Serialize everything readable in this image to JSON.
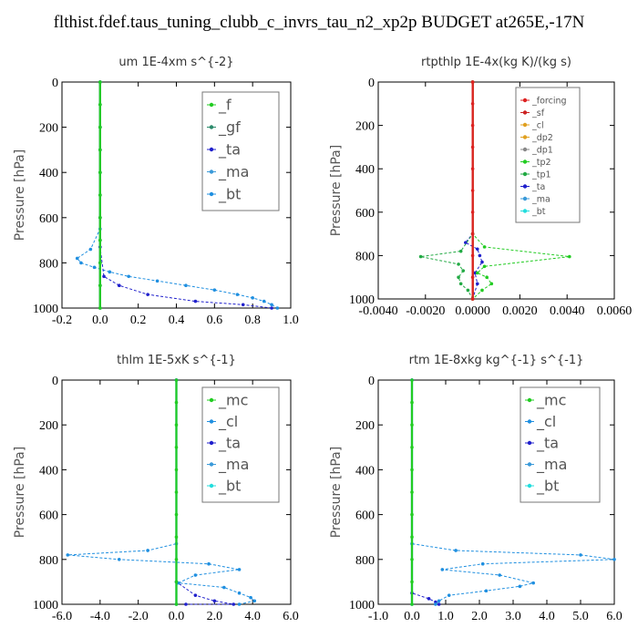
{
  "title": "flthist.fdef.taus_tuning_clubb_c_invrs_tau_n2_xp2p  BUDGET at265E,-17N",
  "chart_data": [
    {
      "type": "line",
      "title": "um   1E-4xm s^{-2}",
      "ylabel": "Pressure [hPa]",
      "xlim": [
        -0.2,
        1.0
      ],
      "ylim": [
        1000,
        0
      ],
      "xticks": [
        "-0.2",
        "0.0",
        "0.2",
        "0.4",
        "0.6",
        "0.8",
        "1.0"
      ],
      "yticks": [
        "0",
        "200",
        "400",
        "600",
        "800",
        "1000"
      ],
      "legend": [
        "_f",
        "_gf",
        "_ta",
        "_ma",
        "_bt"
      ],
      "series": [
        {
          "name": "_f",
          "color": "#22cc22",
          "x": [
            0,
            0,
            0,
            0,
            0,
            0,
            0,
            0,
            0,
            0,
            0
          ],
          "y": [
            0,
            100,
            200,
            300,
            400,
            500,
            600,
            700,
            800,
            900,
            1000
          ]
        },
        {
          "name": "_gf",
          "color": "#2a8a6a",
          "x": [
            0,
            0,
            0,
            0,
            0,
            0,
            0,
            0,
            0,
            0,
            0
          ],
          "y": [
            0,
            100,
            200,
            300,
            400,
            500,
            600,
            700,
            800,
            900,
            1000
          ]
        },
        {
          "name": "_ta",
          "color": "#2020cc",
          "x": [
            0,
            0,
            0,
            0,
            0.02,
            0.1,
            0.25,
            0.5,
            0.75,
            0.9
          ],
          "y": [
            0,
            300,
            600,
            730,
            860,
            900,
            940,
            970,
            985,
            1000
          ]
        },
        {
          "name": "_ma",
          "color": "#3a9ad9",
          "x": [
            0,
            0,
            0,
            0,
            0,
            0,
            0,
            0,
            0,
            0,
            0
          ],
          "y": [
            0,
            100,
            200,
            300,
            400,
            500,
            600,
            700,
            800,
            900,
            1000
          ]
        },
        {
          "name": "_bt",
          "color": "#1f8fe0",
          "x": [
            0,
            0,
            0,
            0,
            -0.05,
            -0.12,
            -0.1,
            -0.03,
            0.05,
            0.15,
            0.3,
            0.45,
            0.6,
            0.72,
            0.8,
            0.86,
            0.9,
            0.93
          ],
          "y": [
            0,
            200,
            400,
            650,
            740,
            780,
            800,
            820,
            840,
            860,
            880,
            900,
            920,
            940,
            955,
            970,
            985,
            1000
          ]
        }
      ]
    },
    {
      "type": "line",
      "title": "rtpthlp   1E-4x(kg K)/(kg s)",
      "ylabel": "Pressure [hPa]",
      "xlim": [
        -0.004,
        0.006
      ],
      "ylim": [
        1000,
        0
      ],
      "xticks": [
        "-0.0040",
        "-0.0020",
        "0.0000",
        "0.0020",
        "0.0040",
        "0.0060"
      ],
      "yticks": [
        "0",
        "200",
        "400",
        "600",
        "800",
        "1000"
      ],
      "legend": [
        "_forcing",
        "_sf",
        "_cl",
        "_dp2",
        "_dp1",
        "_tp2",
        "_tp1",
        "_ta",
        "_ma",
        "_bt"
      ],
      "series": [
        {
          "name": "_forcing",
          "color": "#dd2222",
          "x": [
            0,
            0,
            0,
            0,
            0,
            0,
            0,
            0,
            0,
            0,
            0
          ],
          "y": [
            0,
            100,
            200,
            300,
            400,
            500,
            600,
            700,
            800,
            900,
            1000
          ]
        },
        {
          "name": "_sf",
          "color": "#cc2222",
          "x": [
            0,
            0
          ],
          "y": [
            0,
            1000
          ]
        },
        {
          "name": "_cl",
          "color": "#e0a020",
          "x": [
            0,
            0
          ],
          "y": [
            0,
            1000
          ]
        },
        {
          "name": "_dp2",
          "color": "#e0a020",
          "x": [
            0,
            0
          ],
          "y": [
            0,
            1000
          ]
        },
        {
          "name": "_dp1",
          "color": "#888888",
          "x": [
            0,
            0
          ],
          "y": [
            0,
            1000
          ]
        },
        {
          "name": "_tp2",
          "color": "#22cc22",
          "x": [
            0,
            0,
            0.0005,
            0.0041,
            0.0005,
            0.0002,
            0.0006,
            0.0008,
            0.0004,
            0
          ],
          "y": [
            0,
            700,
            760,
            805,
            850,
            880,
            900,
            930,
            960,
            1000
          ]
        },
        {
          "name": "_tp1",
          "color": "#22aa44",
          "x": [
            0,
            0,
            -0.0005,
            -0.0022,
            -0.0006,
            -0.0004,
            -0.0006,
            -0.0005,
            -0.0002,
            0
          ],
          "y": [
            0,
            700,
            780,
            805,
            840,
            870,
            900,
            930,
            960,
            1000
          ]
        },
        {
          "name": "_ta",
          "color": "#2020cc",
          "x": [
            0,
            0,
            -0.0003,
            0.0002,
            0.0003,
            0.0004,
            0.0001,
            0.0002,
            0
          ],
          "y": [
            0,
            700,
            740,
            770,
            800,
            830,
            880,
            930,
            1000
          ]
        },
        {
          "name": "_ma",
          "color": "#3a9ad9",
          "x": [
            0,
            0
          ],
          "y": [
            0,
            1000
          ]
        },
        {
          "name": "_bt",
          "color": "#22dddd",
          "x": [
            0,
            0
          ],
          "y": [
            0,
            1000
          ]
        }
      ]
    },
    {
      "type": "line",
      "title": "thlm   1E-5xK s^{-1}",
      "ylabel": "Pressure [hPa]",
      "xlim": [
        -6.0,
        6.0
      ],
      "ylim": [
        1000,
        0
      ],
      "xticks": [
        "-6.0",
        "-4.0",
        "-2.0",
        "0.0",
        "2.0",
        "4.0",
        "6.0"
      ],
      "yticks": [
        "0",
        "200",
        "400",
        "600",
        "800",
        "1000"
      ],
      "legend": [
        "_mc",
        "_cl",
        "_ta",
        "_ma",
        "_bt"
      ],
      "series": [
        {
          "name": "_mc",
          "color": "#22cc22",
          "x": [
            0,
            0,
            0,
            0,
            0,
            0,
            0,
            0,
            0,
            0,
            0
          ],
          "y": [
            0,
            100,
            200,
            300,
            400,
            500,
            600,
            700,
            800,
            900,
            1000
          ]
        },
        {
          "name": "_cl",
          "color": "#1f8fe0",
          "x": [
            0,
            0,
            -1.5,
            -5.7,
            -3.0,
            1.7,
            3.3,
            1.0,
            0.1,
            2.5,
            3.3,
            3.9,
            4.1,
            3.3
          ],
          "y": [
            0,
            730,
            760,
            780,
            800,
            820,
            845,
            870,
            905,
            925,
            950,
            970,
            985,
            1000
          ]
        },
        {
          "name": "_ta",
          "color": "#2020cc",
          "x": [
            0,
            0,
            1.0,
            2.0,
            3.0,
            0.5
          ],
          "y": [
            0,
            900,
            960,
            985,
            1000,
            1000
          ]
        },
        {
          "name": "_ma",
          "color": "#3a9ad9",
          "x": [
            0,
            0
          ],
          "y": [
            0,
            1000
          ]
        },
        {
          "name": "_bt",
          "color": "#22dddd",
          "x": [
            0,
            0
          ],
          "y": [
            0,
            1000
          ]
        }
      ]
    },
    {
      "type": "line",
      "title": "rtm   1E-8xkg kg^{-1} s^{-1}",
      "ylabel": "Pressure [hPa]",
      "xlim": [
        -1.0,
        6.0
      ],
      "ylim": [
        1000,
        0
      ],
      "xticks": [
        "-1.0",
        "0.0",
        "1.0",
        "2.0",
        "3.0",
        "4.0",
        "5.0",
        "6.0"
      ],
      "yticks": [
        "0",
        "200",
        "400",
        "600",
        "800",
        "1000"
      ],
      "legend": [
        "_mc",
        "_cl",
        "_ta",
        "_ma",
        "_bt"
      ],
      "series": [
        {
          "name": "_mc",
          "color": "#22cc22",
          "x": [
            0,
            0,
            0,
            0,
            0,
            0,
            0,
            0,
            0,
            0,
            0
          ],
          "y": [
            0,
            100,
            200,
            300,
            400,
            500,
            600,
            700,
            800,
            900,
            1000
          ]
        },
        {
          "name": "_cl",
          "color": "#1f8fe0",
          "x": [
            0,
            0,
            1.3,
            5.0,
            6.0,
            2.1,
            0.9,
            2.6,
            3.6,
            3.2,
            2.2,
            1.1,
            0.8,
            0.7
          ],
          "y": [
            0,
            730,
            760,
            780,
            800,
            820,
            845,
            870,
            905,
            920,
            940,
            960,
            985,
            1000
          ]
        },
        {
          "name": "_ta",
          "color": "#2020cc",
          "x": [
            0,
            0,
            0.5,
            0.7,
            0.8
          ],
          "y": [
            0,
            950,
            975,
            990,
            1000
          ]
        },
        {
          "name": "_ma",
          "color": "#3a9ad9",
          "x": [
            0,
            0
          ],
          "y": [
            0,
            1000
          ]
        },
        {
          "name": "_bt",
          "color": "#22dddd",
          "x": [
            0,
            0
          ],
          "y": [
            0,
            1000
          ]
        }
      ]
    }
  ]
}
